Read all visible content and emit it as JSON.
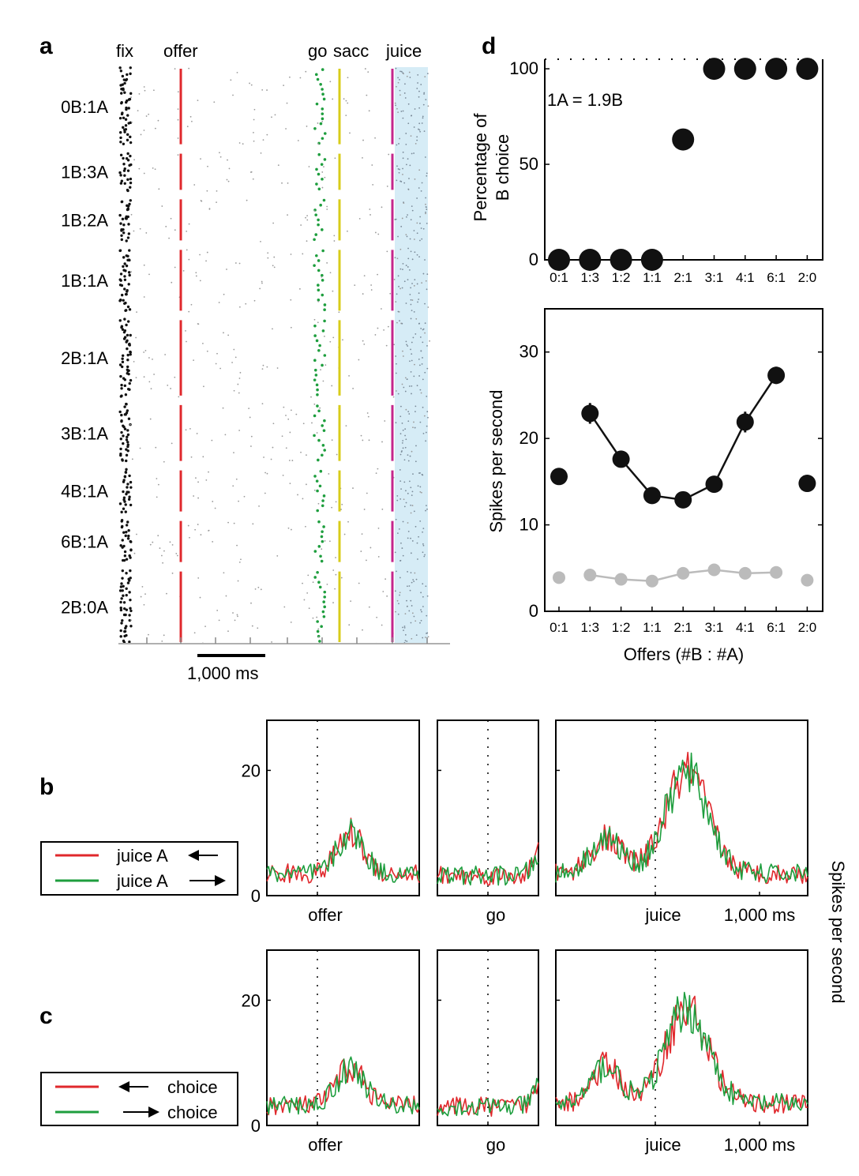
{
  "panel_letters": {
    "a": "a",
    "b": "b",
    "c": "c",
    "d": "d"
  },
  "colors": {
    "fix": "#111111",
    "offer": "#e0282c",
    "go": "#1e9e3e",
    "sacc": "#d8cc1a",
    "juice": "#c4268c",
    "juice_window": "#d6ecf6",
    "gray_series": "#bbbbbb",
    "red_trace": "#e0282c",
    "green_trace": "#1e9e3e",
    "spike_gray": "#9a9a9a"
  },
  "chart_data": [
    {
      "id": "a",
      "type": "raster",
      "event_labels": {
        "fix": "fix",
        "offer": "offer",
        "go": "go",
        "sacc": "sacc",
        "juice": "juice"
      },
      "conditions": [
        "0B:1A",
        "1B:3A",
        "1B:2A",
        "1B:1A",
        "2B:1A",
        "3B:1A",
        "4B:1A",
        "6B:1A",
        "2B:0A"
      ],
      "trial_counts": [
        16,
        8,
        9,
        13,
        16,
        12,
        9,
        9,
        15
      ],
      "scale_bar": "1,000 ms"
    },
    {
      "id": "d-top",
      "type": "scatter",
      "annotation": "1A = 1.9B",
      "ylabel_lines": [
        "Percentage of",
        "B choice"
      ],
      "categories": [
        "0:1",
        "1:3",
        "1:2",
        "1:1",
        "2:1",
        "3:1",
        "4:1",
        "6:1",
        "2:0"
      ],
      "values": [
        0,
        0,
        0,
        0,
        63,
        100,
        100,
        100,
        100
      ],
      "ylim": [
        0,
        105
      ],
      "yticks": [
        "0",
        "50",
        "100"
      ]
    },
    {
      "id": "d-bottom",
      "type": "line",
      "xlabel": "Offers (#B : #A)",
      "ylabel": "Spikes per second",
      "categories": [
        "0:1",
        "1:3",
        "1:2",
        "1:1",
        "2:1",
        "3:1",
        "4:1",
        "6:1",
        "2:0"
      ],
      "series": [
        {
          "name": "black",
          "values": [
            15.6,
            22.9,
            17.6,
            13.4,
            12.9,
            14.7,
            21.9,
            27.3,
            14.8
          ],
          "connected_indices": [
            1,
            2,
            3,
            4,
            5,
            6,
            7
          ],
          "error": [
            0,
            1.2,
            0.8,
            0.7,
            0.6,
            0.7,
            1.2,
            1.0,
            0
          ]
        },
        {
          "name": "gray",
          "values": [
            3.9,
            4.2,
            3.7,
            3.5,
            4.4,
            4.8,
            4.4,
            4.5,
            3.6
          ],
          "connected_indices": [
            1,
            2,
            3,
            4,
            5,
            6,
            7
          ],
          "error": [
            0,
            0.6,
            0,
            0,
            0,
            0,
            0,
            0,
            0
          ]
        }
      ],
      "ylim": [
        0,
        35
      ],
      "yticks": [
        "0",
        "10",
        "20",
        "30"
      ]
    },
    {
      "id": "b",
      "type": "line",
      "ylabel": "Spikes per second",
      "yticks": [
        "0",
        "20"
      ],
      "ylim": [
        0,
        28
      ],
      "legend": [
        {
          "label": "juice A",
          "arrow": "left",
          "color": "red"
        },
        {
          "label": "juice A",
          "arrow": "right",
          "color": "green"
        }
      ],
      "subplots": [
        {
          "event": "offer",
          "baseline": 3.5,
          "bumps": [
            {
              "center": 0.55,
              "width": 0.12,
              "height": 6.5
            }
          ]
        },
        {
          "event": "go",
          "baseline": 3.2,
          "bumps": [
            {
              "center": 1.05,
              "width": 0.12,
              "height": 4
            }
          ]
        },
        {
          "event": "juice",
          "end_label": "1,000 ms",
          "baseline": 3.5,
          "bumps": [
            {
              "center": 0.2,
              "width": 0.09,
              "height": 5.5
            },
            {
              "center": 0.52,
              "width": 0.12,
              "height": 16
            }
          ]
        }
      ]
    },
    {
      "id": "c",
      "type": "line",
      "yticks": [
        "0",
        "20"
      ],
      "ylim": [
        0,
        28
      ],
      "legend": [
        {
          "label": "choice",
          "arrow": "left",
          "color": "red"
        },
        {
          "label": "choice",
          "arrow": "right",
          "color": "green"
        }
      ],
      "subplots": [
        {
          "event": "offer",
          "baseline": 3.2,
          "bumps": [
            {
              "center": 0.55,
              "width": 0.13,
              "height": 6
            }
          ]
        },
        {
          "event": "go",
          "baseline": 3.0,
          "bumps": [
            {
              "center": 1.05,
              "width": 0.12,
              "height": 4
            }
          ]
        },
        {
          "event": "juice",
          "end_label": "1,000 ms",
          "baseline": 3.5,
          "bumps": [
            {
              "center": 0.2,
              "width": 0.08,
              "height": 6
            },
            {
              "center": 0.52,
              "width": 0.12,
              "height": 15
            }
          ]
        }
      ]
    }
  ]
}
